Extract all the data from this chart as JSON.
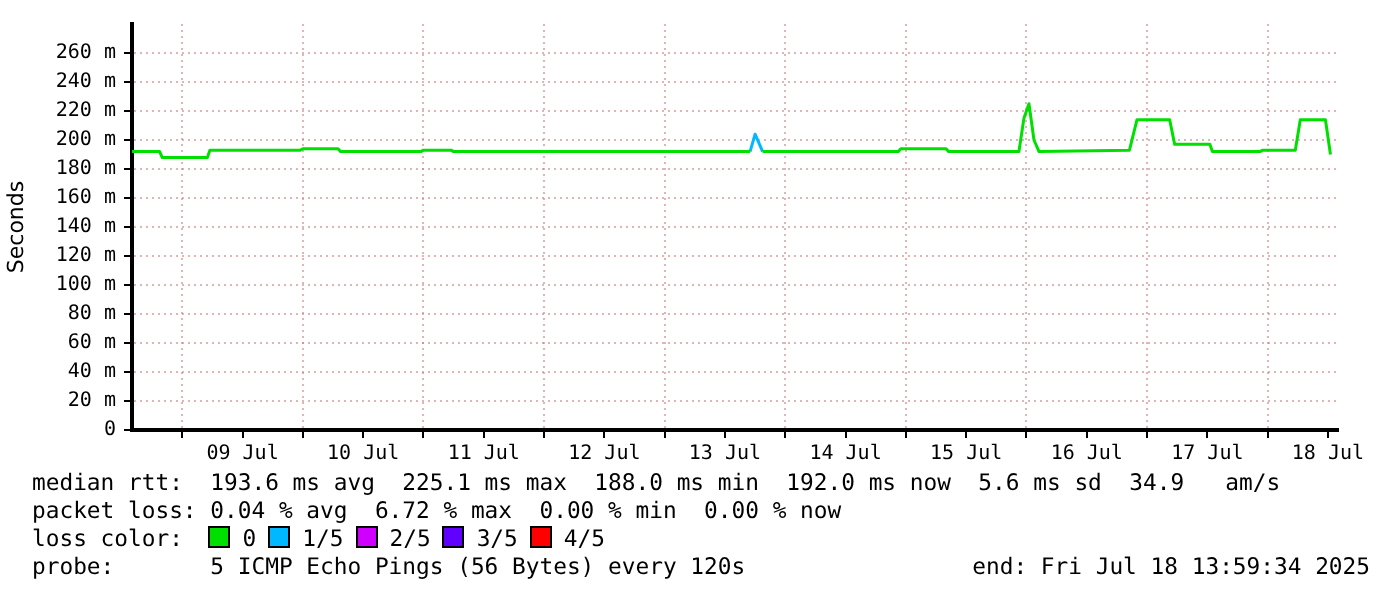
{
  "chart_data": {
    "type": "line",
    "ylabel": "Seconds",
    "legend_title": "loss color:",
    "legend": "bottom",
    "grid": true,
    "xlim": [
      "2025-07-08T14:00",
      "2025-07-18T14:00"
    ],
    "xticks": [
      {
        "value": "2025-07-09T00:00",
        "label": null
      },
      {
        "value": "2025-07-09T12:00",
        "label": "09 Jul"
      },
      {
        "value": "2025-07-10T00:00",
        "label": null
      },
      {
        "value": "2025-07-10T12:00",
        "label": "10 Jul"
      },
      {
        "value": "2025-07-11T00:00",
        "label": null
      },
      {
        "value": "2025-07-11T12:00",
        "label": "11 Jul"
      },
      {
        "value": "2025-07-12T00:00",
        "label": null
      },
      {
        "value": "2025-07-12T12:00",
        "label": "12 Jul"
      },
      {
        "value": "2025-07-13T00:00",
        "label": null
      },
      {
        "value": "2025-07-13T12:00",
        "label": "13 Jul"
      },
      {
        "value": "2025-07-14T00:00",
        "label": null
      },
      {
        "value": "2025-07-14T12:00",
        "label": "14 Jul"
      },
      {
        "value": "2025-07-15T00:00",
        "label": null
      },
      {
        "value": "2025-07-15T12:00",
        "label": "15 Jul"
      },
      {
        "value": "2025-07-16T00:00",
        "label": null
      },
      {
        "value": "2025-07-16T12:00",
        "label": "16 Jul"
      },
      {
        "value": "2025-07-17T00:00",
        "label": null
      },
      {
        "value": "2025-07-17T12:00",
        "label": "17 Jul"
      },
      {
        "value": "2025-07-18T00:00",
        "label": null
      },
      {
        "value": "2025-07-18T12:00",
        "label": "18 Jul"
      }
    ],
    "ylim": [
      0,
      280
    ],
    "yticks": [
      0,
      {
        "value": 20,
        "label": "20 m"
      },
      {
        "value": 40,
        "label": "40 m"
      },
      {
        "value": 60,
        "label": "60 m"
      },
      {
        "value": 80,
        "label": "80 m"
      },
      {
        "value": 100,
        "label": "100 m"
      },
      {
        "value": 120,
        "label": "120 m"
      },
      {
        "value": 140,
        "label": "140 m"
      },
      {
        "value": 160,
        "label": "160 m"
      },
      {
        "value": 180,
        "label": "180 m"
      },
      {
        "value": 200,
        "label": "200 m"
      },
      {
        "value": 220,
        "label": "220 m"
      },
      {
        "value": 240,
        "label": "240 m"
      },
      {
        "value": 260,
        "label": "260 m"
      }
    ],
    "series": [
      {
        "name": "0",
        "color": "#00e000",
        "x": [
          "2025-07-08T14:00",
          "2025-07-08T19:30",
          "2025-07-08T20:00",
          "2025-07-09T05:00",
          "2025-07-09T05:30",
          "2025-07-09T23:30",
          "2025-07-10T00:00",
          "2025-07-10T07:00",
          "2025-07-10T07:30",
          "2025-07-10T23:30",
          "2025-07-11T00:00",
          "2025-07-11T05:30",
          "2025-07-11T06:00",
          "2025-07-13T17:00",
          "2025-07-13T18:00",
          "2025-07-13T19:30",
          "2025-07-14T22:30",
          "2025-07-14T23:00",
          "2025-07-15T08:00",
          "2025-07-15T08:30",
          "2025-07-15T22:30",
          "2025-07-15T23:30",
          "2025-07-16T00:30",
          "2025-07-16T01:30",
          "2025-07-16T02:30",
          "2025-07-16T20:30",
          "2025-07-16T22:00",
          "2025-07-17T04:30",
          "2025-07-17T05:30",
          "2025-07-17T12:30",
          "2025-07-17T13:00",
          "2025-07-17T22:30",
          "2025-07-17T23:00",
          "2025-07-18T05:30",
          "2025-07-18T06:30",
          "2025-07-18T11:30",
          "2025-07-18T12:30"
        ],
        "values": [
          192,
          192,
          188,
          188,
          193,
          193,
          194,
          194,
          192,
          192,
          193,
          193,
          192,
          192,
          null,
          192,
          192,
          194,
          194,
          192,
          192,
          215,
          225,
          200,
          192,
          193,
          214,
          214,
          197,
          197,
          192,
          192,
          193,
          193,
          214,
          214,
          190
        ]
      },
      {
        "name": "1/5",
        "color": "#00b8ff",
        "x": [
          "2025-07-13T17:00",
          "2025-07-13T18:00",
          "2025-07-13T19:30"
        ],
        "values": [
          192,
          204,
          192
        ]
      },
      {
        "name": "2/5",
        "color": "#d000ff"
      },
      {
        "name": "3/5",
        "color": "#6000ff"
      },
      {
        "name": "4/5",
        "color": "#ff0000"
      }
    ],
    "annotations": [
      "median rtt:  193.6 ms avg  225.1 ms max  188.0 ms min  192.0 ms now  5.6 ms sd  34.9   am/s",
      "packet loss: 0.04 % avg  6.72 % max  0.00 % min  0.00 % now",
      "probe:       5 ICMP Echo Pings (56 Bytes) every 120s",
      "end: Fri Jul 18 13:59:34 2025"
    ]
  }
}
